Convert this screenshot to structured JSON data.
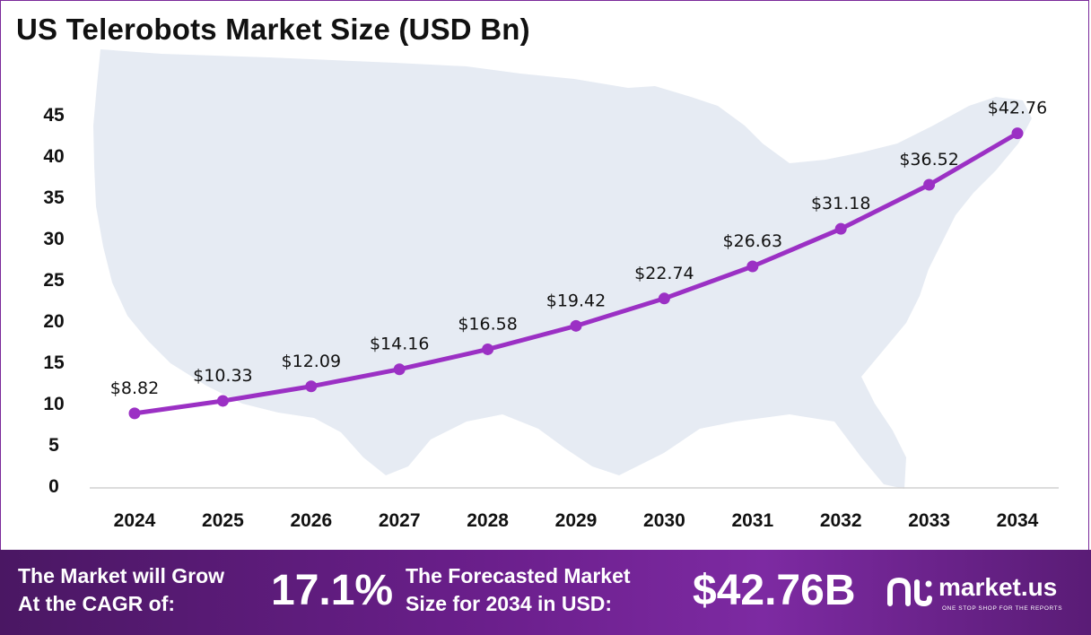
{
  "colors": {
    "line": "#9b30c4",
    "footer_start": "#4a1763",
    "footer_end": "#7d2aa2",
    "map": "#e6ebf3"
  },
  "chart_data": {
    "type": "line",
    "title": "US Telerobots Market Size (USD Bn)",
    "xlabel": "",
    "ylabel": "",
    "categories": [
      "2024",
      "2025",
      "2026",
      "2027",
      "2028",
      "2029",
      "2030",
      "2031",
      "2032",
      "2033",
      "2034"
    ],
    "series": [
      {
        "values": [
          8.82,
          10.33,
          12.09,
          14.16,
          16.58,
          19.42,
          22.74,
          26.63,
          31.18,
          36.52,
          42.76
        ],
        "labels": [
          "$8.82",
          "$10.33",
          "$12.09",
          "$14.16",
          "$16.58",
          "$19.42",
          "$22.74",
          "$26.63",
          "$31.18",
          "$36.52",
          "$42.76"
        ]
      }
    ],
    "yticks": [
      0,
      5,
      10,
      15,
      20,
      25,
      30,
      35,
      40,
      45
    ],
    "ylim": [
      0,
      45
    ],
    "grid": false,
    "background_icon": "us-map-silhouette"
  },
  "footer": {
    "cagr_text_1": "The Market will Grow",
    "cagr_text_2": "At the CAGR of:",
    "cagr_value": "17.1%",
    "forecast_text_1": "The Forecasted Market",
    "forecast_text_2": "Size for 2034 in USD:",
    "forecast_value": "$42.76B",
    "brand_icon": "market-us-logo-icon",
    "brand_name": "market.us",
    "brand_tagline": "ONE STOP SHOP FOR THE REPORTS"
  }
}
